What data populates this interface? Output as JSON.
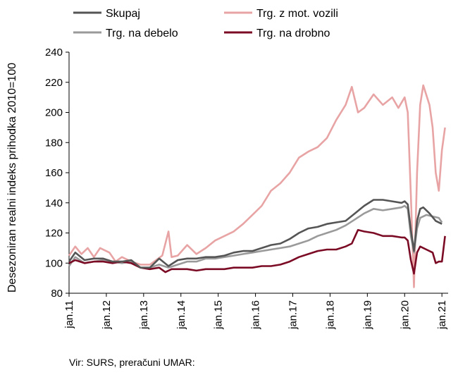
{
  "chart_data": {
    "type": "line",
    "title": "",
    "xlabel": "",
    "ylabel": "Desezoniran realni indeks prihodka 2010=100",
    "ylim": [
      80,
      240
    ],
    "yticks": [
      80,
      100,
      120,
      140,
      160,
      180,
      200,
      220,
      240
    ],
    "x_range": [
      "2011-01",
      "2021-03"
    ],
    "x_ticks": [
      "jan.11",
      "jan.12",
      "jan.13",
      "jan.14",
      "jan.15",
      "jan.16",
      "jan.17",
      "jan.18",
      "jan.19",
      "jan.20",
      "jan.21"
    ],
    "grid": false,
    "legend": "top",
    "series": [
      {
        "name": "Skupaj",
        "color": "#555555",
        "points": [
          [
            "2011-01",
            101
          ],
          [
            "2011-03",
            107
          ],
          [
            "2011-06",
            102
          ],
          [
            "2011-09",
            103
          ],
          [
            "2011-12",
            103
          ],
          [
            "2012-03",
            101
          ],
          [
            "2012-06",
            101
          ],
          [
            "2012-09",
            102
          ],
          [
            "2012-12",
            97
          ],
          [
            "2013-03",
            97
          ],
          [
            "2013-06",
            103
          ],
          [
            "2013-09",
            98
          ],
          [
            "2013-12",
            102
          ],
          [
            "2014-03",
            103
          ],
          [
            "2014-06",
            103
          ],
          [
            "2014-09",
            104
          ],
          [
            "2014-12",
            104
          ],
          [
            "2015-03",
            105
          ],
          [
            "2015-06",
            107
          ],
          [
            "2015-09",
            108
          ],
          [
            "2015-12",
            108
          ],
          [
            "2016-03",
            110
          ],
          [
            "2016-06",
            112
          ],
          [
            "2016-09",
            113
          ],
          [
            "2016-12",
            116
          ],
          [
            "2017-03",
            120
          ],
          [
            "2017-06",
            123
          ],
          [
            "2017-09",
            124
          ],
          [
            "2017-12",
            126
          ],
          [
            "2018-03",
            127
          ],
          [
            "2018-06",
            128
          ],
          [
            "2018-09",
            133
          ],
          [
            "2018-12",
            138
          ],
          [
            "2019-03",
            142
          ],
          [
            "2019-06",
            142
          ],
          [
            "2019-09",
            141
          ],
          [
            "2019-12",
            140
          ],
          [
            "2020-01",
            141
          ],
          [
            "2020-02",
            139
          ],
          [
            "2020-03",
            122
          ],
          [
            "2020-04",
            108
          ],
          [
            "2020-05",
            128
          ],
          [
            "2020-06",
            136
          ],
          [
            "2020-07",
            137
          ],
          [
            "2020-09",
            133
          ],
          [
            "2020-11",
            128
          ],
          [
            "2021-01",
            126
          ]
        ]
      },
      {
        "name": "Trg. z mot. vozili",
        "color": "#e8a4a4",
        "points": [
          [
            "2011-01",
            105
          ],
          [
            "2011-03",
            111
          ],
          [
            "2011-05",
            106
          ],
          [
            "2011-07",
            110
          ],
          [
            "2011-09",
            104
          ],
          [
            "2011-11",
            110
          ],
          [
            "2012-02",
            107
          ],
          [
            "2012-04",
            101
          ],
          [
            "2012-06",
            104
          ],
          [
            "2012-09",
            101
          ],
          [
            "2012-12",
            99
          ],
          [
            "2013-03",
            99
          ],
          [
            "2013-05",
            102
          ],
          [
            "2013-07",
            105
          ],
          [
            "2013-09",
            121
          ],
          [
            "2013-10",
            104
          ],
          [
            "2013-12",
            105
          ],
          [
            "2014-03",
            112
          ],
          [
            "2014-06",
            106
          ],
          [
            "2014-09",
            110
          ],
          [
            "2014-12",
            115
          ],
          [
            "2015-03",
            118
          ],
          [
            "2015-06",
            121
          ],
          [
            "2015-09",
            126
          ],
          [
            "2015-12",
            132
          ],
          [
            "2016-03",
            138
          ],
          [
            "2016-06",
            148
          ],
          [
            "2016-09",
            153
          ],
          [
            "2016-12",
            160
          ],
          [
            "2017-03",
            170
          ],
          [
            "2017-06",
            174
          ],
          [
            "2017-09",
            177
          ],
          [
            "2017-12",
            183
          ],
          [
            "2018-03",
            195
          ],
          [
            "2018-06",
            205
          ],
          [
            "2018-08",
            217
          ],
          [
            "2018-10",
            200
          ],
          [
            "2018-12",
            203
          ],
          [
            "2019-03",
            212
          ],
          [
            "2019-06",
            205
          ],
          [
            "2019-09",
            210
          ],
          [
            "2019-11",
            203
          ],
          [
            "2020-01",
            210
          ],
          [
            "2020-02",
            200
          ],
          [
            "2020-03",
            145
          ],
          [
            "2020-04",
            84
          ],
          [
            "2020-05",
            160
          ],
          [
            "2020-06",
            205
          ],
          [
            "2020-07",
            218
          ],
          [
            "2020-09",
            205
          ],
          [
            "2020-10",
            190
          ],
          [
            "2020-11",
            160
          ],
          [
            "2020-12",
            148
          ],
          [
            "2021-01",
            175
          ],
          [
            "2021-02",
            190
          ]
        ]
      },
      {
        "name": "Trg. na debelo",
        "color": "#9a9a9a",
        "points": [
          [
            "2011-01",
            98
          ],
          [
            "2011-03",
            104
          ],
          [
            "2011-06",
            100
          ],
          [
            "2011-09",
            101
          ],
          [
            "2011-12",
            102
          ],
          [
            "2012-03",
            101
          ],
          [
            "2012-06",
            100
          ],
          [
            "2012-09",
            101
          ],
          [
            "2012-12",
            97
          ],
          [
            "2013-03",
            97
          ],
          [
            "2013-06",
            99
          ],
          [
            "2013-09",
            97
          ],
          [
            "2013-12",
            99
          ],
          [
            "2014-03",
            101
          ],
          [
            "2014-06",
            101
          ],
          [
            "2014-09",
            103
          ],
          [
            "2014-12",
            103
          ],
          [
            "2015-03",
            104
          ],
          [
            "2015-06",
            105
          ],
          [
            "2015-09",
            106
          ],
          [
            "2015-12",
            107
          ],
          [
            "2016-03",
            108
          ],
          [
            "2016-06",
            109
          ],
          [
            "2016-09",
            110
          ],
          [
            "2016-12",
            111
          ],
          [
            "2017-03",
            113
          ],
          [
            "2017-06",
            115
          ],
          [
            "2017-09",
            118
          ],
          [
            "2017-12",
            120
          ],
          [
            "2018-03",
            122
          ],
          [
            "2018-06",
            125
          ],
          [
            "2018-09",
            129
          ],
          [
            "2018-12",
            133
          ],
          [
            "2019-03",
            136
          ],
          [
            "2019-06",
            135
          ],
          [
            "2019-09",
            136
          ],
          [
            "2019-12",
            137
          ],
          [
            "2020-01",
            138
          ],
          [
            "2020-02",
            136
          ],
          [
            "2020-03",
            118
          ],
          [
            "2020-04",
            107
          ],
          [
            "2020-05",
            123
          ],
          [
            "2020-06",
            130
          ],
          [
            "2020-08",
            132
          ],
          [
            "2020-10",
            131
          ],
          [
            "2020-12",
            130
          ],
          [
            "2021-01",
            127
          ]
        ]
      },
      {
        "name": "Trg. na drobno",
        "color": "#7b0a24",
        "points": [
          [
            "2011-01",
            100
          ],
          [
            "2011-03",
            102
          ],
          [
            "2011-06",
            100
          ],
          [
            "2011-09",
            101
          ],
          [
            "2011-12",
            101
          ],
          [
            "2012-03",
            100
          ],
          [
            "2012-06",
            101
          ],
          [
            "2012-09",
            100
          ],
          [
            "2012-12",
            97
          ],
          [
            "2013-03",
            96
          ],
          [
            "2013-06",
            97
          ],
          [
            "2013-08",
            94
          ],
          [
            "2013-10",
            96
          ],
          [
            "2013-12",
            96
          ],
          [
            "2014-03",
            96
          ],
          [
            "2014-06",
            95
          ],
          [
            "2014-09",
            96
          ],
          [
            "2014-12",
            96
          ],
          [
            "2015-03",
            96
          ],
          [
            "2015-06",
            97
          ],
          [
            "2015-09",
            97
          ],
          [
            "2015-12",
            97
          ],
          [
            "2016-03",
            98
          ],
          [
            "2016-06",
            98
          ],
          [
            "2016-09",
            99
          ],
          [
            "2016-12",
            101
          ],
          [
            "2017-03",
            104
          ],
          [
            "2017-06",
            106
          ],
          [
            "2017-09",
            108
          ],
          [
            "2017-12",
            109
          ],
          [
            "2018-03",
            109
          ],
          [
            "2018-06",
            111
          ],
          [
            "2018-08",
            113
          ],
          [
            "2018-10",
            122
          ],
          [
            "2018-12",
            121
          ],
          [
            "2019-03",
            120
          ],
          [
            "2019-06",
            118
          ],
          [
            "2019-09",
            118
          ],
          [
            "2019-12",
            117
          ],
          [
            "2020-01",
            117
          ],
          [
            "2020-02",
            115
          ],
          [
            "2020-03",
            102
          ],
          [
            "2020-04",
            93
          ],
          [
            "2020-05",
            107
          ],
          [
            "2020-06",
            111
          ],
          [
            "2020-08",
            109
          ],
          [
            "2020-10",
            107
          ],
          [
            "2020-11",
            100
          ],
          [
            "2020-12",
            101
          ],
          [
            "2021-01",
            101
          ],
          [
            "2021-02",
            118
          ]
        ]
      }
    ]
  },
  "source_note": "Vir: SURS, preračuni UMAR:"
}
